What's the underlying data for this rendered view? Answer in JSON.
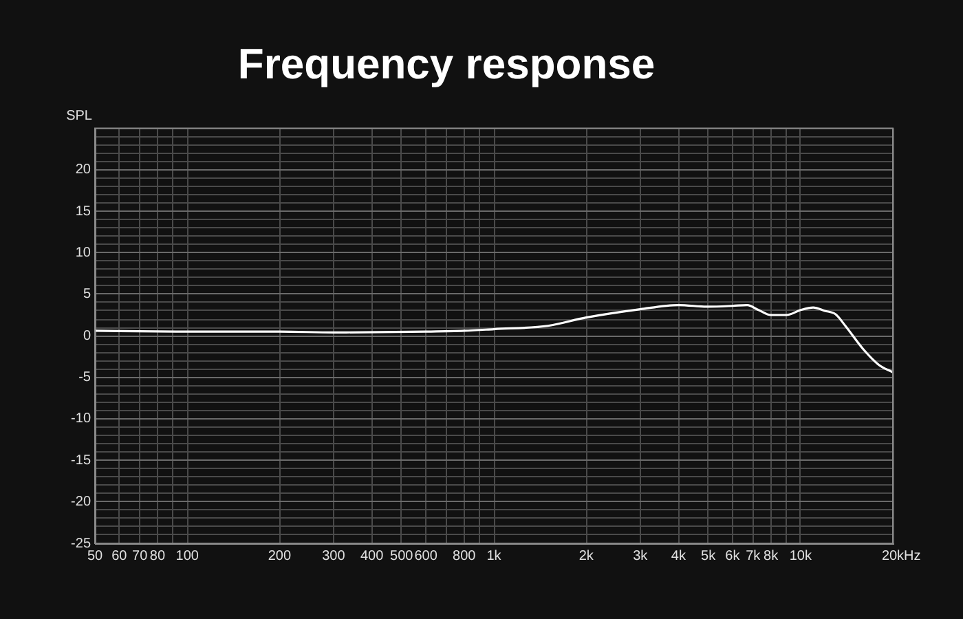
{
  "chart_data": {
    "type": "line",
    "title": "Frequency response",
    "ylabel": "SPL",
    "log": "x",
    "grid": true,
    "legend": false,
    "marker": "none",
    "line_style": "solid",
    "xlim": [
      50,
      20000
    ],
    "xticks": [
      50,
      60,
      70,
      80,
      {
        "value": 90,
        "label": null
      },
      100,
      200,
      300,
      400,
      500,
      600,
      {
        "value": 700,
        "label": null
      },
      800,
      {
        "value": 900,
        "label": null
      },
      {
        "value": 1000,
        "label": "1k"
      },
      {
        "value": 2000,
        "label": "2k"
      },
      {
        "value": 3000,
        "label": "3k"
      },
      {
        "value": 4000,
        "label": "4k"
      },
      {
        "value": 5000,
        "label": "5k"
      },
      {
        "value": 6000,
        "label": "6k"
      },
      {
        "value": 7000,
        "label": "7k"
      },
      {
        "value": 8000,
        "label": "8k"
      },
      {
        "value": 9000,
        "label": null
      },
      {
        "value": 10000,
        "label": "10k"
      },
      {
        "value": 20000,
        "label": "20k"
      }
    ],
    "xlabel": "Hz",
    "ylim": [
      -25,
      25
    ],
    "yticks": [
      -25,
      {
        "value": -24,
        "label": null
      },
      {
        "value": -23,
        "label": null
      },
      {
        "value": -22,
        "label": null
      },
      {
        "value": -21,
        "label": null
      },
      -20,
      {
        "value": -19,
        "label": null
      },
      {
        "value": -18,
        "label": null
      },
      {
        "value": -17,
        "label": null
      },
      {
        "value": -16,
        "label": null
      },
      -15,
      {
        "value": -14,
        "label": null
      },
      {
        "value": -13,
        "label": null
      },
      {
        "value": -12,
        "label": null
      },
      {
        "value": -11,
        "label": null
      },
      -10,
      {
        "value": -9,
        "label": null
      },
      {
        "value": -8,
        "label": null
      },
      {
        "value": -7,
        "label": null
      },
      {
        "value": -6,
        "label": null
      },
      -5,
      {
        "value": -4,
        "label": null
      },
      {
        "value": -3,
        "label": null
      },
      {
        "value": -2,
        "label": null
      },
      {
        "value": -1,
        "label": null
      },
      0,
      {
        "value": 1,
        "label": null
      },
      {
        "value": 2,
        "label": null
      },
      {
        "value": 3,
        "label": null
      },
      {
        "value": 4,
        "label": null
      },
      5,
      {
        "value": 6,
        "label": null
      },
      {
        "value": 7,
        "label": null
      },
      {
        "value": 8,
        "label": null
      },
      {
        "value": 9,
        "label": null
      },
      10,
      {
        "value": 11,
        "label": null
      },
      {
        "value": 12,
        "label": null
      },
      {
        "value": 13,
        "label": null
      },
      {
        "value": 14,
        "label": null
      },
      15,
      {
        "value": 16,
        "label": null
      },
      {
        "value": 17,
        "label": null
      },
      {
        "value": 18,
        "label": null
      },
      {
        "value": 19,
        "label": null
      },
      20,
      {
        "value": 21,
        "label": null
      },
      {
        "value": 22,
        "label": null
      },
      {
        "value": 23,
        "label": null
      },
      {
        "value": 24,
        "label": null
      },
      {
        "value": 25,
        "label": null
      }
    ],
    "x": [
      50,
      100,
      200,
      300,
      600,
      800,
      1000,
      1500,
      2000,
      3000,
      4000,
      5000,
      6000,
      6700,
      7300,
      8000,
      9000,
      10000,
      11000,
      12000,
      13000,
      14000,
      16000,
      18000,
      20000
    ],
    "series": [
      {
        "color": "#ffffff",
        "values": [
          0.6,
          0.5,
          0.5,
          0.4,
          0.5,
          0.6,
          0.8,
          1.2,
          2.2,
          3.2,
          3.7,
          3.5,
          3.6,
          3.7,
          3.1,
          2.5,
          2.5,
          3.1,
          3.4,
          3.0,
          2.6,
          1.2,
          -1.6,
          -3.5,
          -4.4
        ]
      }
    ]
  }
}
